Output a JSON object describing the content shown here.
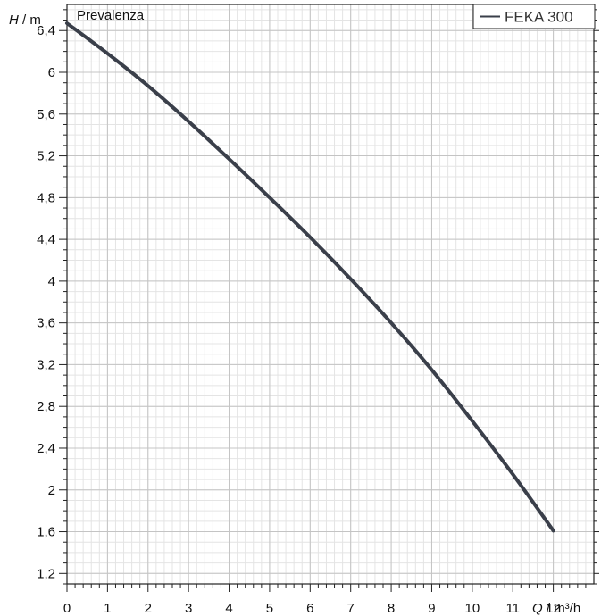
{
  "chart_data": {
    "type": "line",
    "title": "Prevalenza",
    "xlabel": {
      "symbol": "Q",
      "unit": "m³/h"
    },
    "ylabel": {
      "symbol": "H",
      "unit": "m"
    },
    "xlim": [
      0,
      13
    ],
    "ylim": [
      1.1,
      6.65
    ],
    "x_ticks": [
      "0",
      "1",
      "2",
      "3",
      "4",
      "5",
      "6",
      "7",
      "8",
      "9",
      "10",
      "11",
      "12"
    ],
    "y_ticks": [
      "1,2",
      "1,6",
      "2",
      "2,4",
      "2,8",
      "3,2",
      "3,6",
      "4",
      "4,4",
      "4,8",
      "5,2",
      "5,6",
      "6",
      "6,4"
    ],
    "grid": true,
    "legend_position": "top-right",
    "series": [
      {
        "name": "FEKA 300",
        "color": "#3a3f4a",
        "x": [
          0,
          1,
          2,
          3,
          4,
          5,
          6,
          7,
          8,
          9,
          10,
          11,
          12
        ],
        "y": [
          6.47,
          6.18,
          5.87,
          5.53,
          5.17,
          4.8,
          4.42,
          4.02,
          3.6,
          3.15,
          2.66,
          2.15,
          1.61
        ]
      }
    ]
  }
}
